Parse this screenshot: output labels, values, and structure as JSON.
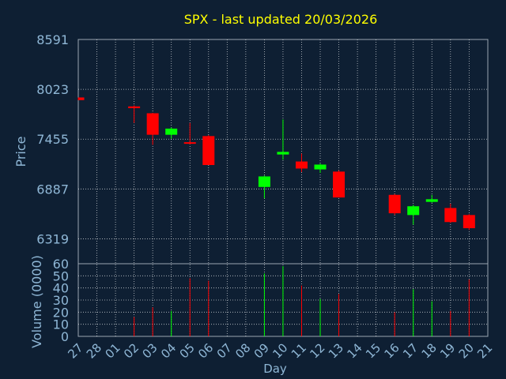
{
  "chart_data": {
    "type": "candlestick",
    "title": "SPX - last updated 20/03/2026",
    "xlabel": "Day",
    "price_ylabel": "Price",
    "volume_ylabel": "Volume (0000)",
    "price_ylim": [
      6035,
      8591
    ],
    "price_ticks": [
      "8591",
      "8023",
      "7455",
      "6887",
      "6319"
    ],
    "volume_ylim": [
      0,
      60
    ],
    "volume_ticks": [
      "60",
      "50",
      "40",
      "30",
      "20",
      "10",
      "0"
    ],
    "x_ticks": [
      "27",
      "28",
      "01",
      "02",
      "03",
      "04",
      "05",
      "06",
      "07",
      "08",
      "09",
      "10",
      "11",
      "12",
      "13",
      "14",
      "15",
      "16",
      "17",
      "18",
      "19",
      "20",
      "21"
    ],
    "colors": {
      "up": "#00ff00",
      "down": "#ff0000",
      "title": "#ffff00",
      "axis_text": "#8fb7d6",
      "grid": "#ffffff",
      "background": "#0e1f33"
    },
    "candles": [
      {
        "x": 0,
        "open": 7930,
        "close": 7900,
        "high": 7930,
        "low": 7900,
        "volume": 0
      },
      {
        "x": 3,
        "open": 7828,
        "close": 7808,
        "high": 7840,
        "low": 7640,
        "volume": 16
      },
      {
        "x": 4,
        "open": 7750,
        "close": 7505,
        "high": 7755,
        "low": 7390,
        "volume": 24
      },
      {
        "x": 5,
        "open": 7505,
        "close": 7575,
        "high": 7590,
        "low": 7460,
        "volume": 21
      },
      {
        "x": 6,
        "open": 7420,
        "close": 7405,
        "high": 7640,
        "low": 7395,
        "volume": 48
      },
      {
        "x": 7,
        "open": 7490,
        "close": 7160,
        "high": 7500,
        "low": 7160,
        "volume": 46
      },
      {
        "x": 10,
        "open": 6910,
        "close": 7030,
        "high": 7040,
        "low": 6780,
        "volume": 52
      },
      {
        "x": 11,
        "open": 7280,
        "close": 7310,
        "high": 7680,
        "low": 7220,
        "volume": 58
      },
      {
        "x": 12,
        "open": 7200,
        "close": 7120,
        "high": 7290,
        "low": 7080,
        "volume": 42
      },
      {
        "x": 13,
        "open": 7110,
        "close": 7165,
        "high": 7175,
        "low": 7070,
        "volume": 31
      },
      {
        "x": 14,
        "open": 7085,
        "close": 6790,
        "high": 7100,
        "low": 6790,
        "volume": 35
      },
      {
        "x": 17,
        "open": 6820,
        "close": 6610,
        "high": 6830,
        "low": 6590,
        "volume": 20
      },
      {
        "x": 18,
        "open": 6590,
        "close": 6690,
        "high": 6705,
        "low": 6480,
        "volume": 39
      },
      {
        "x": 19,
        "open": 6740,
        "close": 6770,
        "high": 6820,
        "low": 6730,
        "volume": 29
      },
      {
        "x": 20,
        "open": 6670,
        "close": 6510,
        "high": 6720,
        "low": 6500,
        "volume": 21
      },
      {
        "x": 21,
        "open": 6590,
        "close": 6440,
        "high": 6600,
        "low": 6420,
        "volume": 47
      }
    ]
  }
}
